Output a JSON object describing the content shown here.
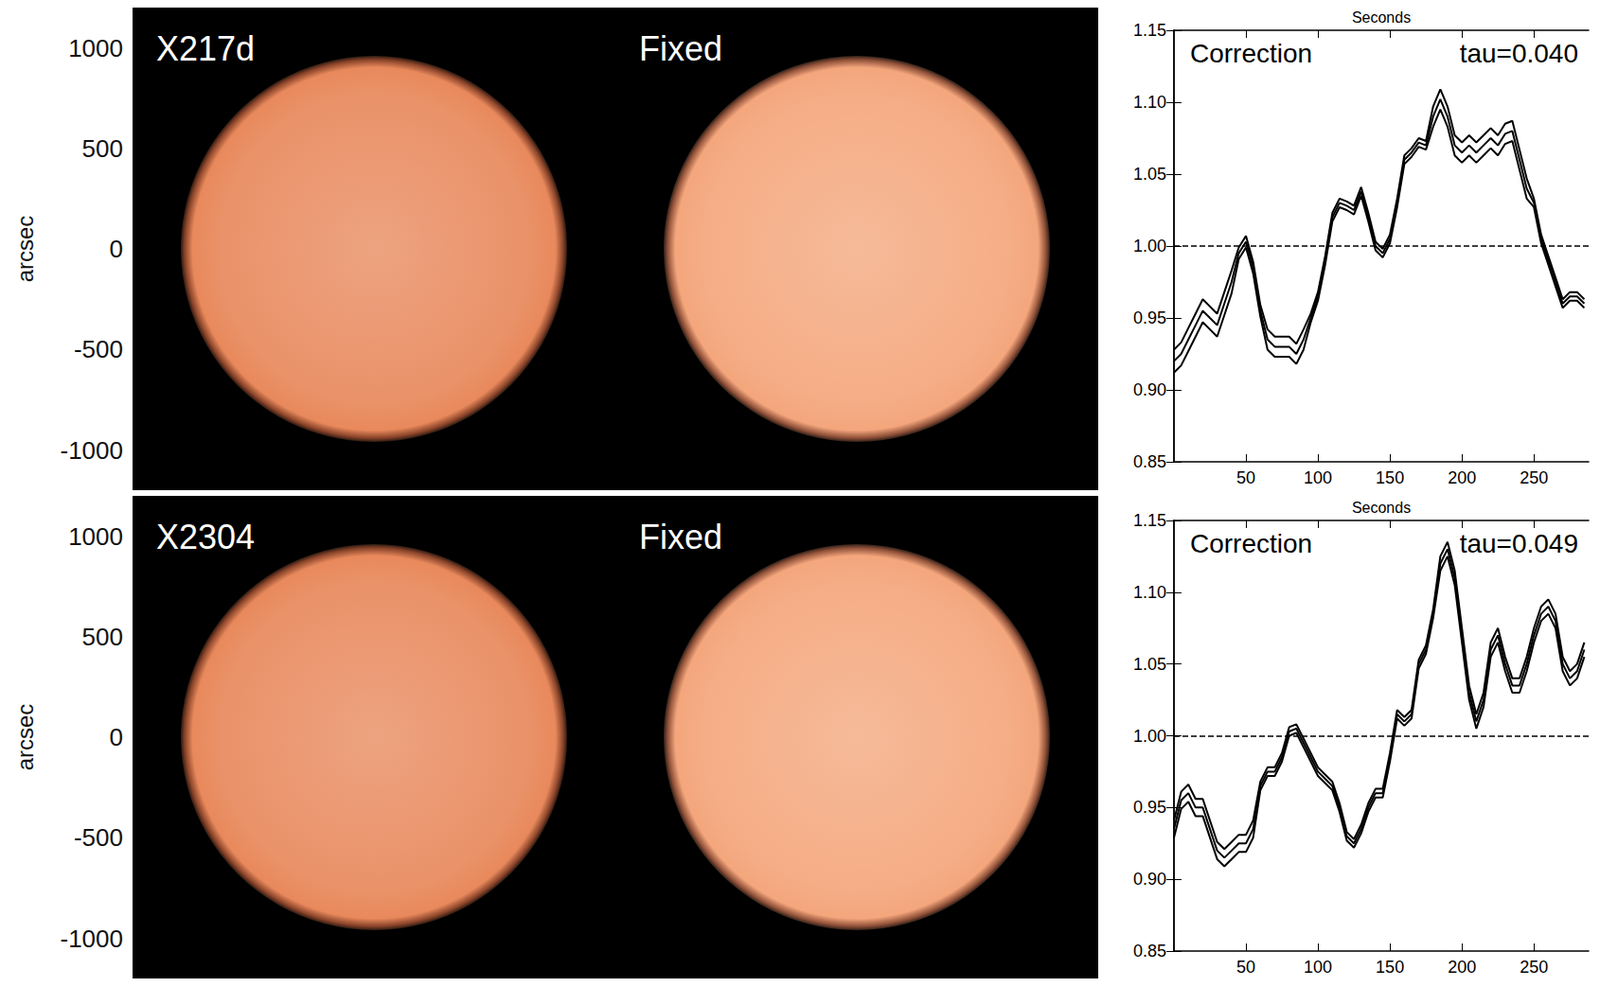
{
  "chart_data": [
    {
      "type": "image",
      "title": "X217d",
      "ylabel": "arcsec",
      "xlim": [
        -1200,
        1200
      ],
      "ylim": [
        -1200,
        1200
      ],
      "yticks": [
        -1000,
        -500,
        0,
        500,
        1000
      ],
      "tick_labels": "y",
      "disk": {
        "center": [
          0,
          0
        ],
        "radius": 960
      },
      "color": "#e8895c"
    },
    {
      "type": "image",
      "title": "Fixed",
      "xlim": [
        -1200,
        1200
      ],
      "ylim": [
        -1200,
        1200
      ],
      "tick_labels": false,
      "disk": {
        "center": [
          0,
          0
        ],
        "radius": 960
      },
      "color": "#f4a67c"
    },
    {
      "type": "image",
      "title": "X2304",
      "ylabel": "arcsec",
      "xlim": [
        -1200,
        1200
      ],
      "ylim": [
        -1200,
        1200
      ],
      "yticks": [
        -1000,
        -500,
        0,
        500,
        1000
      ],
      "tick_labels": "y",
      "disk": {
        "center": [
          0,
          0
        ],
        "radius": 960
      },
      "color": "#e8895c"
    },
    {
      "type": "image",
      "title": "Fixed",
      "xlim": [
        -1200,
        1200
      ],
      "ylim": [
        -1200,
        1200
      ],
      "tick_labels": false,
      "disk": {
        "center": [
          0,
          0
        ],
        "radius": 960
      },
      "color": "#f4a67c"
    },
    {
      "type": "line",
      "title": "Correction",
      "subtitle": "tau=0.040",
      "xlabel": "Seconds",
      "x": [
        0,
        5,
        10,
        15,
        20,
        25,
        30,
        35,
        40,
        45,
        50,
        55,
        60,
        65,
        70,
        75,
        80,
        85,
        90,
        95,
        100,
        105,
        110,
        115,
        120,
        125,
        130,
        135,
        140,
        145,
        150,
        155,
        160,
        165,
        170,
        175,
        180,
        185,
        190,
        195,
        200,
        205,
        210,
        215,
        220,
        225,
        230,
        235,
        240,
        245,
        250,
        255,
        260,
        265,
        270,
        275,
        280,
        285
      ],
      "series": [
        {
          "color": "#000000",
          "values": [
            0.928,
            0.933,
            0.943,
            0.953,
            0.963,
            0.958,
            0.953,
            0.968,
            0.983,
            0.999,
            1.007,
            0.989,
            0.959,
            0.942,
            0.937,
            0.937,
            0.937,
            0.932,
            0.942,
            0.953,
            0.968,
            0.993,
            1.023,
            1.033,
            1.031,
            1.028,
            1.041,
            1.023,
            1.003,
            0.998,
            1.008,
            1.033,
            1.063,
            1.068,
            1.075,
            1.073,
            1.097,
            1.109,
            1.097,
            1.077,
            1.072,
            1.077,
            1.072,
            1.077,
            1.082,
            1.077,
            1.085,
            1.087,
            1.067,
            1.047,
            1.033,
            1.008,
            0.993,
            0.978,
            0.963,
            0.968,
            0.968,
            0.963
          ]
        },
        {
          "color": "#000000",
          "values": [
            0.92,
            0.925,
            0.935,
            0.945,
            0.955,
            0.95,
            0.945,
            0.96,
            0.975,
            0.995,
            1.003,
            0.985,
            0.955,
            0.935,
            0.93,
            0.93,
            0.93,
            0.925,
            0.935,
            0.95,
            0.965,
            0.99,
            1.02,
            1.03,
            1.028,
            1.025,
            1.038,
            1.02,
            1.0,
            0.995,
            1.005,
            1.03,
            1.06,
            1.065,
            1.072,
            1.07,
            1.09,
            1.102,
            1.09,
            1.07,
            1.065,
            1.07,
            1.065,
            1.07,
            1.075,
            1.07,
            1.078,
            1.08,
            1.06,
            1.04,
            1.03,
            1.005,
            0.99,
            0.975,
            0.96,
            0.965,
            0.965,
            0.96
          ]
        },
        {
          "color": "#000000",
          "values": [
            0.912,
            0.917,
            0.927,
            0.937,
            0.947,
            0.942,
            0.937,
            0.952,
            0.967,
            0.991,
            0.999,
            0.981,
            0.951,
            0.928,
            0.923,
            0.923,
            0.923,
            0.918,
            0.928,
            0.947,
            0.962,
            0.987,
            1.017,
            1.027,
            1.025,
            1.022,
            1.035,
            1.017,
            0.997,
            0.992,
            1.002,
            1.027,
            1.057,
            1.062,
            1.069,
            1.067,
            1.083,
            1.095,
            1.083,
            1.063,
            1.058,
            1.063,
            1.058,
            1.063,
            1.068,
            1.063,
            1.071,
            1.073,
            1.053,
            1.033,
            1.027,
            1.002,
            0.987,
            0.972,
            0.957,
            0.962,
            0.962,
            0.957
          ]
        }
      ],
      "xlim": [
        0,
        288
      ],
      "ylim": [
        0.85,
        1.15
      ],
      "xticks": [
        50,
        100,
        150,
        200,
        250
      ],
      "yticks": [
        0.85,
        {
          "value": 0.9,
          "label": "0.90"
        },
        0.95,
        {
          "value": 1.0,
          "label": "1.00"
        },
        1.05,
        {
          "value": 1.1,
          "label": "1.10"
        },
        1.15
      ],
      "hline": 1.0
    },
    {
      "type": "line",
      "title": "Correction",
      "subtitle": "tau=0.049",
      "xlabel": "Seconds",
      "x": [
        0,
        5,
        10,
        15,
        20,
        25,
        30,
        35,
        40,
        45,
        50,
        55,
        60,
        65,
        70,
        75,
        80,
        85,
        90,
        95,
        100,
        105,
        110,
        115,
        120,
        125,
        130,
        135,
        140,
        145,
        150,
        155,
        160,
        165,
        170,
        175,
        180,
        185,
        190,
        195,
        200,
        205,
        210,
        215,
        220,
        225,
        230,
        235,
        240,
        245,
        250,
        255,
        260,
        265,
        270,
        275,
        280,
        285
      ],
      "series": [
        {
          "color": "#000000",
          "values": [
            0.941,
            0.961,
            0.966,
            0.956,
            0.956,
            0.941,
            0.926,
            0.921,
            0.926,
            0.931,
            0.931,
            0.941,
            0.968,
            0.978,
            0.978,
            0.988,
            1.006,
            1.008,
            0.998,
            0.988,
            0.978,
            0.973,
            0.968,
            0.953,
            0.933,
            0.928,
            0.938,
            0.953,
            0.963,
            0.963,
            0.988,
            1.018,
            1.013,
            1.018,
            1.053,
            1.063,
            1.088,
            1.125,
            1.135,
            1.115,
            1.075,
            1.035,
            1.015,
            1.03,
            1.065,
            1.075,
            1.055,
            1.04,
            1.04,
            1.055,
            1.075,
            1.09,
            1.095,
            1.085,
            1.055,
            1.045,
            1.05,
            1.065
          ]
        },
        {
          "color": "#000000",
          "values": [
            0.935,
            0.955,
            0.96,
            0.95,
            0.95,
            0.935,
            0.92,
            0.915,
            0.92,
            0.925,
            0.925,
            0.935,
            0.965,
            0.975,
            0.975,
            0.985,
            1.003,
            1.005,
            0.995,
            0.985,
            0.975,
            0.97,
            0.965,
            0.95,
            0.93,
            0.925,
            0.935,
            0.95,
            0.96,
            0.96,
            0.985,
            1.015,
            1.01,
            1.015,
            1.05,
            1.06,
            1.085,
            1.12,
            1.13,
            1.11,
            1.07,
            1.03,
            1.01,
            1.025,
            1.06,
            1.07,
            1.05,
            1.035,
            1.035,
            1.05,
            1.07,
            1.085,
            1.09,
            1.08,
            1.05,
            1.04,
            1.045,
            1.06
          ]
        },
        {
          "color": "#000000",
          "values": [
            0.929,
            0.949,
            0.954,
            0.944,
            0.944,
            0.929,
            0.914,
            0.909,
            0.914,
            0.919,
            0.919,
            0.929,
            0.962,
            0.972,
            0.972,
            0.982,
            1.0,
            1.002,
            0.992,
            0.982,
            0.972,
            0.967,
            0.962,
            0.947,
            0.927,
            0.922,
            0.932,
            0.947,
            0.957,
            0.957,
            0.982,
            1.012,
            1.007,
            1.012,
            1.047,
            1.057,
            1.082,
            1.115,
            1.125,
            1.105,
            1.065,
            1.025,
            1.005,
            1.02,
            1.055,
            1.065,
            1.045,
            1.03,
            1.03,
            1.045,
            1.065,
            1.08,
            1.085,
            1.075,
            1.045,
            1.035,
            1.04,
            1.055
          ]
        }
      ],
      "xlim": [
        0,
        288
      ],
      "ylim": [
        0.85,
        1.15
      ],
      "xticks": [
        50,
        100,
        150,
        200,
        250
      ],
      "yticks": [
        0.85,
        {
          "value": 0.9,
          "label": "0.90"
        },
        0.95,
        {
          "value": 1.0,
          "label": "1.00"
        },
        1.05,
        {
          "value": 1.1,
          "label": "1.10"
        },
        1.15
      ],
      "hline": 1.0
    }
  ]
}
